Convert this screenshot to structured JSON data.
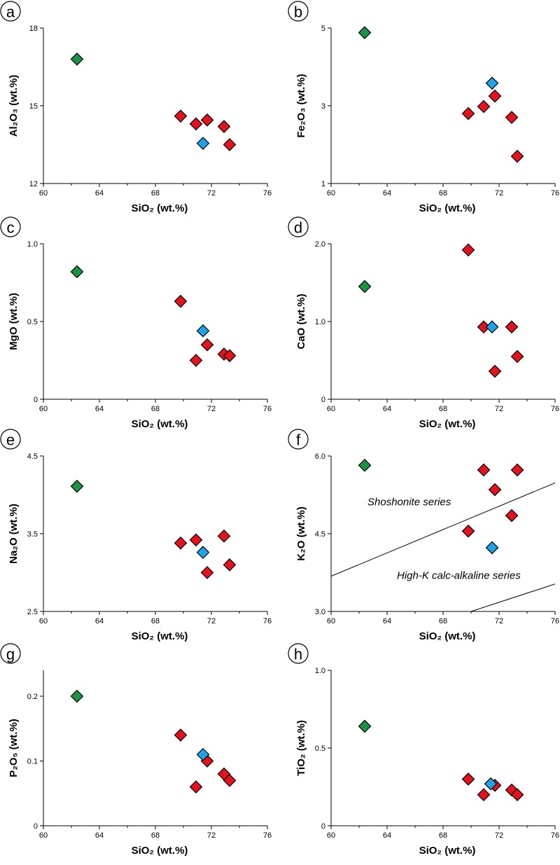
{
  "colors": {
    "red": "#e3121e",
    "blue": "#1fa3e8",
    "green": "#1a9444"
  },
  "panels": [
    {
      "letter": "a",
      "xlabel": "SiO₂ (wt.%)",
      "ylabel": "Al₂O₃ (wt.%)",
      "xticks": [
        "60",
        "64",
        "68",
        "72",
        "76"
      ],
      "yticks": [
        "12",
        "15",
        "18"
      ]
    },
    {
      "letter": "b",
      "xlabel": "SiO₂ (wt.%)",
      "ylabel": "Fe₂O₃ (wt.%)",
      "xticks": [
        "60",
        "64",
        "68",
        "72",
        "76"
      ],
      "yticks": [
        "1",
        "3",
        "5"
      ]
    },
    {
      "letter": "c",
      "xlabel": "SiO₂ (wt.%)",
      "ylabel": "MgO (wt.%)",
      "xticks": [
        "60",
        "64",
        "68",
        "72",
        "76"
      ],
      "yticks": [
        "0",
        "0.5",
        "1.0"
      ]
    },
    {
      "letter": "d",
      "xlabel": "SiO₂ (wt.%)",
      "ylabel": "CaO (wt.%)",
      "xticks": [
        "60",
        "64",
        "68",
        "72",
        "76"
      ],
      "yticks": [
        "0",
        "1.0",
        "2.0"
      ]
    },
    {
      "letter": "e",
      "xlabel": "SiO₂ (wt.%)",
      "ylabel": "Na₂O (wt.%)",
      "xticks": [
        "60",
        "64",
        "68",
        "72",
        "76"
      ],
      "yticks": [
        "2.5",
        "3.5",
        "4.5"
      ]
    },
    {
      "letter": "f",
      "xlabel": "SiO₂ (wt.%)",
      "ylabel": "K₂O (wt.%)",
      "xticks": [
        "60",
        "64",
        "68",
        "72",
        "76"
      ],
      "yticks": [
        "3.0",
        "4.5",
        "6.0"
      ],
      "series_labels": [
        "Shoshonite series",
        "High-K calc-alkaline series"
      ]
    },
    {
      "letter": "g",
      "xlabel": "SiO₂ (wt.%)",
      "ylabel": "P₂O₅ (wt.%)",
      "xticks": [
        "60",
        "64",
        "68",
        "72",
        "76"
      ],
      "yticks": [
        "0",
        "0.1",
        "0.2"
      ]
    },
    {
      "letter": "h",
      "xlabel": "SiO₂ (wt.%)",
      "ylabel": "TiO₂ (wt.%)",
      "xticks": [
        "60",
        "64",
        "68",
        "72",
        "76"
      ],
      "yticks": [
        "0",
        "0.5",
        "1.0"
      ]
    }
  ],
  "chart_data": [
    {
      "type": "scatter",
      "panel": "a",
      "xlabel": "SiO₂ (wt.%)",
      "ylabel": "Al₂O₃ (wt.%)",
      "xlim": [
        60,
        76
      ],
      "ylim": [
        12,
        18
      ],
      "series": [
        {
          "name": "red",
          "color": "#e3121e",
          "points": [
            [
              69.8,
              14.6
            ],
            [
              70.9,
              14.3
            ],
            [
              71.7,
              14.45
            ],
            [
              72.9,
              14.2
            ],
            [
              73.3,
              13.5
            ]
          ]
        },
        {
          "name": "blue",
          "color": "#1fa3e8",
          "points": [
            [
              71.4,
              13.55
            ]
          ]
        },
        {
          "name": "green",
          "color": "#1a9444",
          "points": [
            [
              62.4,
              16.8
            ]
          ]
        }
      ]
    },
    {
      "type": "scatter",
      "panel": "b",
      "xlabel": "SiO₂ (wt.%)",
      "ylabel": "Fe₂O₃ (wt.%)",
      "xlim": [
        60,
        76
      ],
      "ylim": [
        1,
        5
      ],
      "series": [
        {
          "name": "red",
          "color": "#e3121e",
          "points": [
            [
              69.8,
              2.8
            ],
            [
              70.9,
              2.98
            ],
            [
              71.7,
              3.25
            ],
            [
              72.9,
              2.7
            ],
            [
              73.3,
              1.7
            ]
          ]
        },
        {
          "name": "blue",
          "color": "#1fa3e8",
          "points": [
            [
              71.5,
              3.58
            ]
          ]
        },
        {
          "name": "green",
          "color": "#1a9444",
          "points": [
            [
              62.4,
              4.88
            ]
          ]
        }
      ]
    },
    {
      "type": "scatter",
      "panel": "c",
      "xlabel": "SiO₂ (wt.%)",
      "ylabel": "MgO (wt.%)",
      "xlim": [
        60,
        76
      ],
      "ylim": [
        0,
        1.0
      ],
      "series": [
        {
          "name": "red",
          "color": "#e3121e",
          "points": [
            [
              69.8,
              0.63
            ],
            [
              70.9,
              0.25
            ],
            [
              71.7,
              0.35
            ],
            [
              72.9,
              0.29
            ],
            [
              73.3,
              0.28
            ]
          ]
        },
        {
          "name": "blue",
          "color": "#1fa3e8",
          "points": [
            [
              71.4,
              0.44
            ]
          ]
        },
        {
          "name": "green",
          "color": "#1a9444",
          "points": [
            [
              62.4,
              0.82
            ]
          ]
        }
      ]
    },
    {
      "type": "scatter",
      "panel": "d",
      "xlabel": "SiO₂ (wt.%)",
      "ylabel": "CaO (wt.%)",
      "xlim": [
        60,
        76
      ],
      "ylim": [
        0,
        2.0
      ],
      "series": [
        {
          "name": "red",
          "color": "#e3121e",
          "points": [
            [
              69.8,
              1.92
            ],
            [
              70.9,
              0.93
            ],
            [
              71.7,
              0.36
            ],
            [
              72.9,
              0.93
            ],
            [
              73.3,
              0.55
            ]
          ]
        },
        {
          "name": "blue",
          "color": "#1fa3e8",
          "points": [
            [
              71.5,
              0.93
            ]
          ]
        },
        {
          "name": "green",
          "color": "#1a9444",
          "points": [
            [
              62.4,
              1.45
            ]
          ]
        }
      ]
    },
    {
      "type": "scatter",
      "panel": "e",
      "xlabel": "SiO₂ (wt.%)",
      "ylabel": "Na₂O (wt.%)",
      "xlim": [
        60,
        76
      ],
      "ylim": [
        2.5,
        4.5
      ],
      "series": [
        {
          "name": "red",
          "color": "#e3121e",
          "points": [
            [
              69.8,
              3.38
            ],
            [
              70.9,
              3.42
            ],
            [
              71.7,
              3.0
            ],
            [
              72.9,
              3.47
            ],
            [
              73.3,
              3.1
            ]
          ]
        },
        {
          "name": "blue",
          "color": "#1fa3e8",
          "points": [
            [
              71.4,
              3.26
            ]
          ]
        },
        {
          "name": "green",
          "color": "#1a9444",
          "points": [
            [
              62.4,
              4.11
            ]
          ]
        }
      ]
    },
    {
      "type": "scatter",
      "panel": "f",
      "xlabel": "SiO₂ (wt.%)",
      "ylabel": "K₂O (wt.%)",
      "xlim": [
        60,
        76
      ],
      "ylim": [
        3.0,
        6.0
      ],
      "series": [
        {
          "name": "red",
          "color": "#e3121e",
          "points": [
            [
              69.8,
              4.55
            ],
            [
              70.9,
              5.73
            ],
            [
              71.7,
              5.35
            ],
            [
              72.9,
              4.85
            ],
            [
              73.3,
              5.73
            ]
          ]
        },
        {
          "name": "blue",
          "color": "#1fa3e8",
          "points": [
            [
              71.5,
              4.23
            ]
          ]
        },
        {
          "name": "green",
          "color": "#1a9444",
          "points": [
            [
              62.4,
              5.82
            ]
          ]
        }
      ],
      "boundaries": [
        {
          "from": [
            60,
            3.68
          ],
          "to": [
            76,
            5.48
          ]
        },
        {
          "from": [
            70,
            3.0
          ],
          "to": [
            76,
            3.53
          ]
        }
      ]
    },
    {
      "type": "scatter",
      "panel": "g",
      "xlabel": "SiO₂ (wt.%)",
      "ylabel": "P₂O₅ (wt.%)",
      "xlim": [
        60,
        76
      ],
      "ylim": [
        0,
        0.24
      ],
      "series": [
        {
          "name": "red",
          "color": "#e3121e",
          "points": [
            [
              69.8,
              0.14
            ],
            [
              70.9,
              0.06
            ],
            [
              71.7,
              0.1
            ],
            [
              72.9,
              0.08
            ],
            [
              73.3,
              0.07
            ]
          ]
        },
        {
          "name": "blue",
          "color": "#1fa3e8",
          "points": [
            [
              71.4,
              0.11
            ]
          ]
        },
        {
          "name": "green",
          "color": "#1a9444",
          "points": [
            [
              62.4,
              0.2
            ]
          ]
        }
      ]
    },
    {
      "type": "scatter",
      "panel": "h",
      "xlabel": "SiO₂ (wt.%)",
      "ylabel": "TiO₂ (wt.%)",
      "xlim": [
        60,
        76
      ],
      "ylim": [
        0,
        1.0
      ],
      "series": [
        {
          "name": "red",
          "color": "#e3121e",
          "points": [
            [
              69.8,
              0.3
            ],
            [
              70.9,
              0.2
            ],
            [
              71.7,
              0.26
            ],
            [
              72.9,
              0.23
            ],
            [
              73.3,
              0.2
            ]
          ]
        },
        {
          "name": "blue",
          "color": "#1fa3e8",
          "points": [
            [
              71.4,
              0.27
            ]
          ]
        },
        {
          "name": "green",
          "color": "#1a9444",
          "points": [
            [
              62.4,
              0.64
            ]
          ]
        }
      ]
    }
  ]
}
